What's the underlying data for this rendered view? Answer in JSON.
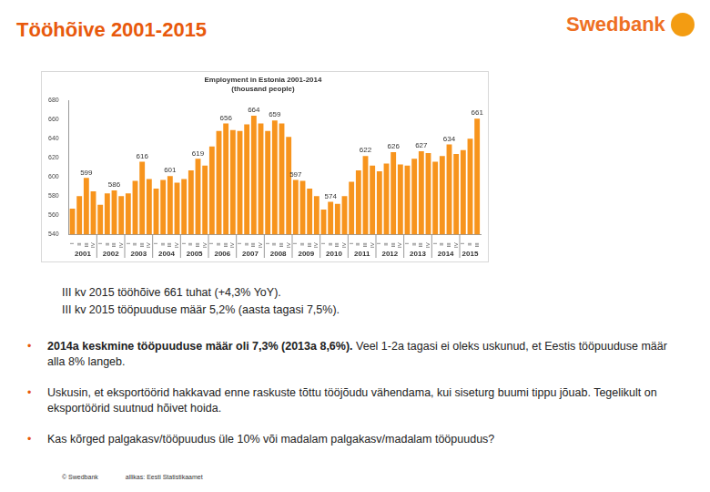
{
  "slide": {
    "title": "Tööhõive 2001-2015",
    "logo": "Swedbank",
    "lines": [
      "III kv 2015 tööhõive 661 tuhat (+4,3% YoY).",
      "III kv 2015 tööpuuduse määr 5,2% (aasta tagasi 7,5%)."
    ],
    "bullets": [
      {
        "bold": "2014a keskmine tööpuuduse määr oli 7,3% (2013a 8,6%).",
        "text": " Veel 1-2a tagasi ei oleks uskunud, et Eestis tööpuuduse määr alla 8% langeb."
      },
      {
        "bold": "",
        "text": "Uskusin, et eksportöörid hakkavad enne raskuste tõttu tööjõudu vähendama, kui siseturg buumi tippu jõuab. Tegelikult on eksportöörid suutnud hõivet hoida."
      },
      {
        "bold": "",
        "text": "Kas kõrged palgakasv/tööpuudus üle 10% või madalam palgakasv/madalam tööpuudus?"
      }
    ],
    "footer": [
      "© Swedbank",
      "allikas: Eesti Statistikaamet"
    ]
  },
  "chart_data": {
    "type": "bar",
    "title": "Employment in Estonia 2001-2014",
    "subtitle": "(thousand people)",
    "categories": [
      "I",
      "II",
      "III",
      "IV",
      "I",
      "II",
      "III",
      "IV",
      "I",
      "II",
      "III",
      "IV",
      "I",
      "II",
      "III",
      "IV",
      "I",
      "II",
      "III",
      "IV",
      "I",
      "II",
      "III",
      "IV",
      "I",
      "II",
      "III",
      "IV",
      "I",
      "II",
      "III",
      "IV",
      "I",
      "II",
      "III",
      "IV",
      "I",
      "II",
      "III",
      "IV",
      "I",
      "II",
      "III",
      "IV",
      "I",
      "II",
      "III",
      "IV",
      "I",
      "II",
      "III",
      "IV",
      "I",
      "II",
      "III",
      "IV",
      "I",
      "II",
      "III"
    ],
    "years": [
      "2001",
      "2002",
      "2003",
      "2004",
      "2005",
      "2006",
      "2007",
      "2008",
      "2009",
      "2010",
      "2011",
      "2012",
      "2013",
      "2014",
      "2015"
    ],
    "values": [
      567,
      580,
      599,
      585,
      571,
      583,
      586,
      580,
      583,
      596,
      616,
      598,
      588,
      597,
      601,
      594,
      598,
      607,
      619,
      612,
      632,
      648,
      656,
      649,
      648,
      655,
      664,
      656,
      648,
      659,
      656,
      642,
      597,
      596,
      588,
      580,
      566,
      574,
      572,
      580,
      595,
      607,
      622,
      612,
      606,
      614,
      626,
      613,
      612,
      619,
      627,
      625,
      616,
      622,
      634,
      624,
      628,
      640,
      661
    ],
    "value_labels": [
      null,
      null,
      "599",
      null,
      null,
      null,
      "586",
      null,
      null,
      null,
      "616",
      null,
      null,
      null,
      "601",
      null,
      null,
      null,
      "619",
      null,
      null,
      null,
      "656",
      null,
      null,
      null,
      "664",
      null,
      null,
      "659",
      null,
      null,
      "597",
      null,
      null,
      null,
      null,
      "574",
      null,
      null,
      null,
      null,
      "622",
      null,
      null,
      null,
      "626",
      null,
      null,
      null,
      "627",
      null,
      null,
      null,
      "634",
      null,
      null,
      null,
      "661"
    ],
    "data_labels": true,
    "color": "#f7941d",
    "ylim": [
      540,
      680
    ],
    "yticks": [
      540,
      560,
      580,
      600,
      620,
      640,
      660,
      680
    ],
    "grid": false
  }
}
